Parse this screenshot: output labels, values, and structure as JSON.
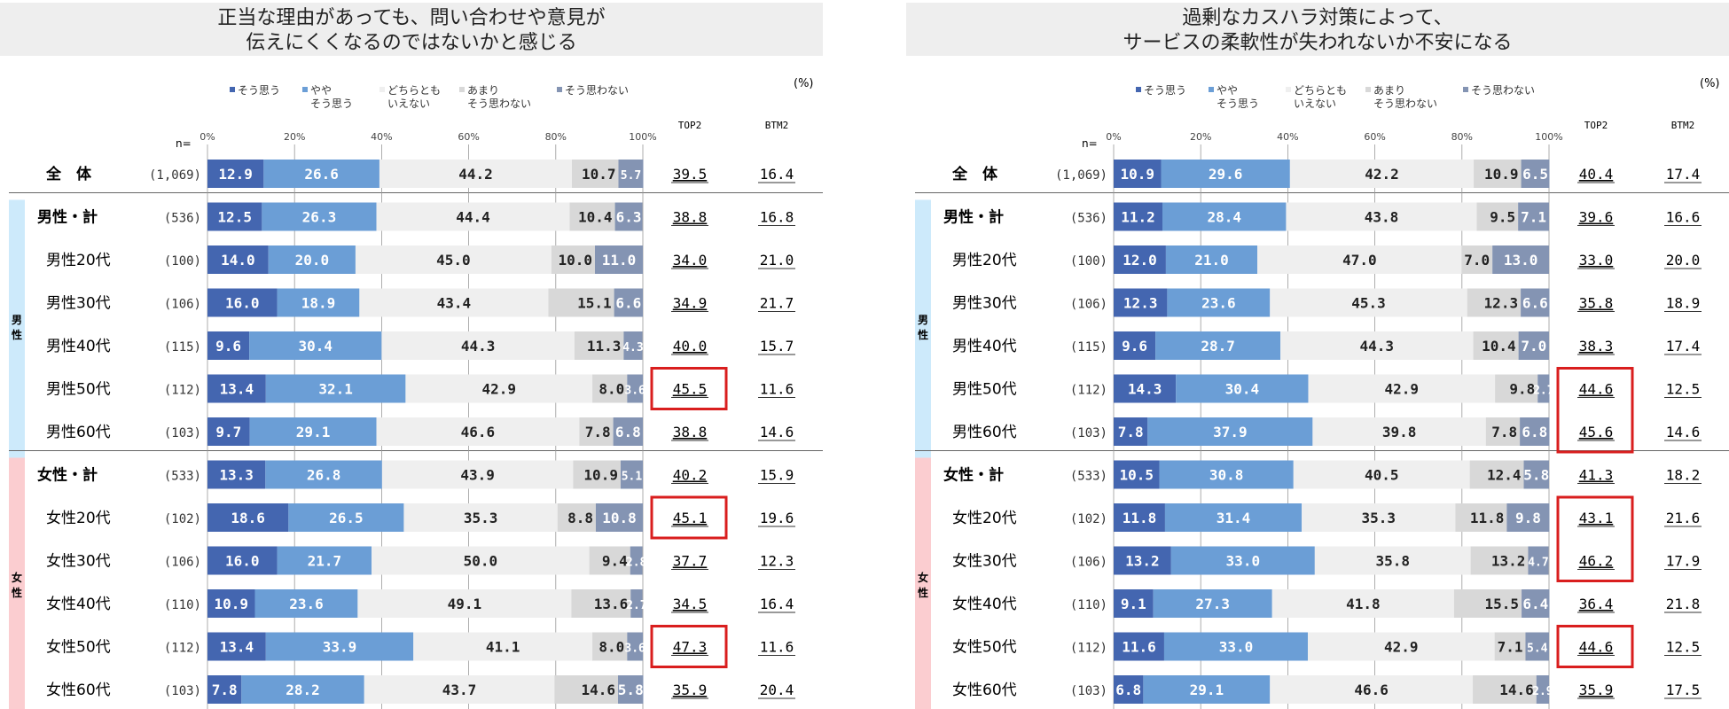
{
  "unit_label": "(%)",
  "n_label": "n=",
  "col_top2": "TOP2",
  "col_btm2": "BTM2",
  "legend": [
    {
      "key": "s1",
      "lines": [
        "そう思う"
      ]
    },
    {
      "key": "s2",
      "lines": [
        "やや",
        "そう思う"
      ]
    },
    {
      "key": "s3",
      "lines": [
        "どちらとも",
        "いえない"
      ]
    },
    {
      "key": "s4",
      "lines": [
        "あまり",
        "そう思わない"
      ]
    },
    {
      "key": "s5",
      "lines": [
        "そう思わない"
      ]
    }
  ],
  "colors": {
    "s1": "#4466b0",
    "s2": "#6b9ed6",
    "s3": "#efefef",
    "s4": "#d8d8d8",
    "s5": "#8494b3",
    "male_band": "#cdeafb",
    "female_band": "#fbcdd0",
    "highlight": "#d91e1e"
  },
  "row_labels": [
    "全　体",
    "男性・計",
    "男性20代",
    "男性30代",
    "男性40代",
    "男性50代",
    "男性60代",
    "女性・計",
    "女性20代",
    "女性30代",
    "女性40代",
    "女性50代",
    "女性60代"
  ],
  "n_values": [
    "(1,069)",
    "(536)",
    "(100)",
    "(106)",
    "(115)",
    "(112)",
    "(103)",
    "(533)",
    "(102)",
    "(106)",
    "(110)",
    "(112)",
    "(103)"
  ],
  "group_labels": {
    "male": [
      "男",
      "性"
    ],
    "female": [
      "女",
      "性"
    ]
  },
  "axis_ticks": [
    "0%",
    "20%",
    "40%",
    "60%",
    "80%",
    "100%"
  ],
  "chart_data": [
    {
      "type": "bar",
      "stacked": true,
      "orientation": "horizontal",
      "title": [
        "正当な理由があっても、問い合わせや意見が",
        "伝えにくくなるのではないかと感じる"
      ],
      "xlim": [
        0,
        100
      ],
      "series_names": [
        "そう思う",
        "ややそう思う",
        "どちらともいえない",
        "あまりそう思わない",
        "そう思わない"
      ],
      "rows": [
        {
          "values": [
            12.9,
            26.6,
            44.2,
            10.7,
            5.7
          ],
          "top2": "39.5",
          "btm2": "16.4",
          "hl": false
        },
        {
          "values": [
            12.5,
            26.3,
            44.4,
            10.4,
            6.3
          ],
          "top2": "38.8",
          "btm2": "16.8",
          "hl": false
        },
        {
          "values": [
            14.0,
            20.0,
            45.0,
            10.0,
            11.0
          ],
          "top2": "34.0",
          "btm2": "21.0",
          "hl": false
        },
        {
          "values": [
            16.0,
            18.9,
            43.4,
            15.1,
            6.6
          ],
          "top2": "34.9",
          "btm2": "21.7",
          "hl": false
        },
        {
          "values": [
            9.6,
            30.4,
            44.3,
            11.3,
            4.3
          ],
          "top2": "40.0",
          "btm2": "15.7",
          "hl": false
        },
        {
          "values": [
            13.4,
            32.1,
            42.9,
            8.0,
            3.6
          ],
          "top2": "45.5",
          "btm2": "11.6",
          "hl": true
        },
        {
          "values": [
            9.7,
            29.1,
            46.6,
            7.8,
            6.8
          ],
          "top2": "38.8",
          "btm2": "14.6",
          "hl": false
        },
        {
          "values": [
            13.3,
            26.8,
            43.9,
            10.9,
            5.1
          ],
          "top2": "40.2",
          "btm2": "15.9",
          "hl": false
        },
        {
          "values": [
            18.6,
            26.5,
            35.3,
            8.8,
            10.8
          ],
          "top2": "45.1",
          "btm2": "19.6",
          "hl": true
        },
        {
          "values": [
            16.0,
            21.7,
            50.0,
            9.4,
            2.8
          ],
          "top2": "37.7",
          "btm2": "12.3",
          "hl": false
        },
        {
          "values": [
            10.9,
            23.6,
            49.1,
            13.6,
            2.7
          ],
          "top2": "34.5",
          "btm2": "16.4",
          "hl": false
        },
        {
          "values": [
            13.4,
            33.9,
            41.1,
            8.0,
            3.6
          ],
          "top2": "47.3",
          "btm2": "11.6",
          "hl": true
        },
        {
          "values": [
            7.8,
            28.2,
            43.7,
            14.6,
            5.8
          ],
          "top2": "35.9",
          "btm2": "20.4",
          "hl": false
        }
      ]
    },
    {
      "type": "bar",
      "stacked": true,
      "orientation": "horizontal",
      "title": [
        "過剰なカスハラ対策によって、",
        "サービスの柔軟性が失われないか不安になる"
      ],
      "xlim": [
        0,
        100
      ],
      "series_names": [
        "そう思う",
        "ややそう思う",
        "どちらともいえない",
        "あまりそう思わない",
        "そう思わない"
      ],
      "rows": [
        {
          "values": [
            10.9,
            29.6,
            42.2,
            10.9,
            6.5
          ],
          "top2": "40.4",
          "btm2": "17.4",
          "hl": false
        },
        {
          "values": [
            11.2,
            28.4,
            43.8,
            9.5,
            7.1
          ],
          "top2": "39.6",
          "btm2": "16.6",
          "hl": false
        },
        {
          "values": [
            12.0,
            21.0,
            47.0,
            7.0,
            13.0
          ],
          "top2": "33.0",
          "btm2": "20.0",
          "hl": false
        },
        {
          "values": [
            12.3,
            23.6,
            45.3,
            12.3,
            6.6
          ],
          "top2": "35.8",
          "btm2": "18.9",
          "hl": false
        },
        {
          "values": [
            9.6,
            28.7,
            44.3,
            10.4,
            7.0
          ],
          "top2": "38.3",
          "btm2": "17.4",
          "hl": false
        },
        {
          "values": [
            14.3,
            30.4,
            42.9,
            9.8,
            2.7
          ],
          "top2": "44.6",
          "btm2": "12.5",
          "hl": true
        },
        {
          "values": [
            7.8,
            37.9,
            39.8,
            7.8,
            6.8
          ],
          "top2": "45.6",
          "btm2": "14.6",
          "hl": true
        },
        {
          "values": [
            10.5,
            30.8,
            40.5,
            12.4,
            5.8
          ],
          "top2": "41.3",
          "btm2": "18.2",
          "hl": false
        },
        {
          "values": [
            11.8,
            31.4,
            35.3,
            11.8,
            9.8
          ],
          "top2": "43.1",
          "btm2": "21.6",
          "hl": true
        },
        {
          "values": [
            13.2,
            33.0,
            35.8,
            13.2,
            4.7
          ],
          "top2": "46.2",
          "btm2": "17.9",
          "hl": true
        },
        {
          "values": [
            9.1,
            27.3,
            41.8,
            15.5,
            6.4
          ],
          "top2": "36.4",
          "btm2": "21.8",
          "hl": false
        },
        {
          "values": [
            11.6,
            33.0,
            42.9,
            7.1,
            5.4
          ],
          "top2": "44.6",
          "btm2": "12.5",
          "hl": true
        },
        {
          "values": [
            6.8,
            29.1,
            46.6,
            14.6,
            2.9
          ],
          "top2": "35.9",
          "btm2": "17.5",
          "hl": false
        }
      ]
    }
  ]
}
